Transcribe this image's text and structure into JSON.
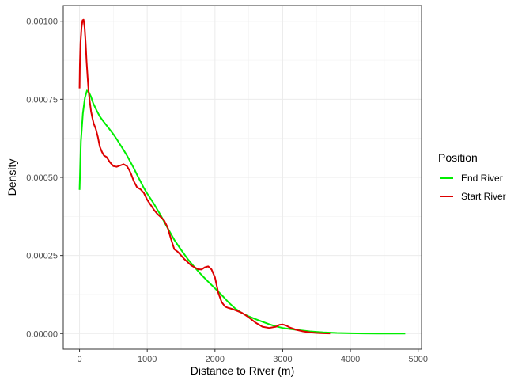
{
  "chart_data": {
    "type": "line",
    "title": "",
    "xlabel": "Distance to River (m)",
    "ylabel": "Density",
    "xlim": [
      -240,
      5050
    ],
    "ylim": [
      -5e-05,
      0.00105
    ],
    "x_ticks": [
      0,
      1000,
      2000,
      3000,
      4000,
      5000
    ],
    "x_tick_labels": [
      "0",
      "1000",
      "2000",
      "3000",
      "4000",
      "5000"
    ],
    "y_ticks": [
      0,
      0.00025,
      0.0005,
      0.00075,
      0.001
    ],
    "y_tick_labels": [
      "0.00000",
      "0.00025",
      "0.00050",
      "0.00075",
      "0.00100"
    ],
    "grid": true,
    "legend": {
      "title": "Position",
      "placement": "right"
    },
    "series": [
      {
        "name": "End River",
        "color": "#00ee00",
        "x": [
          0,
          20,
          50,
          80,
          110,
          140,
          170,
          200,
          250,
          300,
          350,
          400,
          450,
          500,
          550,
          600,
          650,
          700,
          750,
          800,
          850,
          900,
          950,
          1000,
          1100,
          1200,
          1300,
          1400,
          1500,
          1600,
          1700,
          1800,
          1900,
          2000,
          2100,
          2200,
          2300,
          2400,
          2500,
          2600,
          2700,
          2800,
          2900,
          3000,
          3200,
          3400,
          3600,
          3800,
          4000,
          4200,
          4400,
          4600,
          4810
        ],
        "y": [
          0.00046,
          0.000615,
          0.000705,
          0.000755,
          0.000778,
          0.000772,
          0.000758,
          0.000738,
          0.000715,
          0.000695,
          0.00068,
          0.000666,
          0.000652,
          0.000638,
          0.000622,
          0.000605,
          0.000588,
          0.00057,
          0.00055,
          0.00053,
          0.000508,
          0.000487,
          0.000466,
          0.000448,
          0.000415,
          0.000378,
          0.000338,
          0.0003,
          0.000268,
          0.000238,
          0.000212,
          0.000188,
          0.000166,
          0.000145,
          0.000123,
          0.0001,
          8e-05,
          6.5e-05,
          5.5e-05,
          4.6e-05,
          3.8e-05,
          3e-05,
          2.3e-05,
          1.8e-05,
          1.2e-05,
          7e-06,
          4e-06,
          2e-06,
          1e-06,
          5e-07,
          3e-07,
          2e-07,
          1e-07
        ]
      },
      {
        "name": "Start River",
        "color": "#dd0000",
        "x": [
          0,
          5,
          15,
          30,
          45,
          60,
          75,
          90,
          105,
          120,
          135,
          150,
          170,
          190,
          210,
          240,
          270,
          300,
          330,
          360,
          400,
          450,
          500,
          550,
          600,
          650,
          700,
          730,
          760,
          800,
          850,
          900,
          950,
          1000,
          1050,
          1100,
          1150,
          1200,
          1250,
          1300,
          1350,
          1400,
          1450,
          1500,
          1550,
          1600,
          1650,
          1700,
          1750,
          1800,
          1850,
          1900,
          1950,
          2000,
          2050,
          2100,
          2150,
          2200,
          2250,
          2300,
          2400,
          2500,
          2600,
          2700,
          2800,
          2900,
          2950,
          3000,
          3050,
          3100,
          3200,
          3300,
          3400,
          3500,
          3600,
          3700
        ],
        "y": [
          0.000785,
          0.00086,
          0.00093,
          0.00098,
          0.001003,
          0.001005,
          0.00098,
          0.00093,
          0.00087,
          0.00082,
          0.000775,
          0.000745,
          0.000712,
          0.00069,
          0.000672,
          0.000655,
          0.00063,
          0.000598,
          0.000582,
          0.00057,
          0.000565,
          0.000548,
          0.000536,
          0.000534,
          0.000538,
          0.000542,
          0.000536,
          0.000525,
          0.000512,
          0.000488,
          0.000468,
          0.000462,
          0.00045,
          0.000428,
          0.000412,
          0.000396,
          0.000383,
          0.000373,
          0.000362,
          0.00034,
          0.000303,
          0.00027,
          0.000262,
          0.00025,
          0.000238,
          0.000228,
          0.000218,
          0.000212,
          0.000206,
          0.000205,
          0.000212,
          0.000215,
          0.000205,
          0.00018,
          0.00013,
          0.0001,
          8.6e-05,
          8.2e-05,
          7.9e-05,
          7.5e-05,
          6.6e-05,
          5.2e-05,
          3.5e-05,
          2.2e-05,
          1.8e-05,
          2.2e-05,
          2.8e-05,
          2.9e-05,
          2.6e-05,
          2e-05,
          1.2e-05,
          7e-06,
          4e-06,
          2e-06,
          1e-06,
          5e-07
        ]
      }
    ]
  }
}
